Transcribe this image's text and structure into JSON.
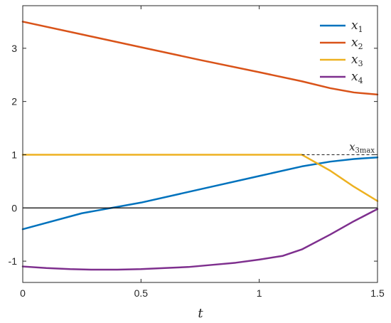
{
  "chart_data": {
    "type": "line",
    "xlabel": "t",
    "ylabel": "",
    "xlim": [
      0,
      1.5
    ],
    "ylim": [
      -1.4,
      3.8
    ],
    "xticks": [
      0,
      0.5,
      1,
      1.5
    ],
    "xtick_labels": [
      "0",
      "0.5",
      "1",
      "1.5"
    ],
    "yticks": [
      -1,
      0,
      1,
      2,
      3
    ],
    "ytick_labels": [
      "-1",
      "0",
      "1",
      "2",
      "3"
    ],
    "grid": false,
    "legend": "top-right",
    "series": [
      {
        "name": "x1",
        "name_main": "x",
        "name_sub": "1",
        "color": "#0072BD",
        "x": [
          0,
          0.25,
          0.5,
          0.75,
          1.0,
          1.18,
          1.3,
          1.4,
          1.5
        ],
        "y": [
          -0.4,
          -0.1,
          0.1,
          0.35,
          0.6,
          0.78,
          0.87,
          0.92,
          0.95
        ]
      },
      {
        "name": "x2",
        "name_main": "x",
        "name_sub": "2",
        "color": "#D95319",
        "x": [
          0,
          0.25,
          0.5,
          0.75,
          1.0,
          1.18,
          1.3,
          1.4,
          1.5
        ],
        "y": [
          3.5,
          3.26,
          3.02,
          2.78,
          2.55,
          2.38,
          2.25,
          2.17,
          2.13
        ]
      },
      {
        "name": "x3",
        "name_main": "x",
        "name_sub": "3",
        "color": "#EDB120",
        "x": [
          0,
          0.5,
          1.0,
          1.18,
          1.3,
          1.4,
          1.5
        ],
        "y": [
          1,
          1,
          1,
          1,
          0.7,
          0.4,
          0.13
        ]
      },
      {
        "name": "x4",
        "name_main": "x",
        "name_sub": "4",
        "color": "#7E2F8E",
        "x": [
          0,
          0.1,
          0.2,
          0.3,
          0.4,
          0.5,
          0.6,
          0.7,
          0.8,
          0.9,
          1.0,
          1.1,
          1.18,
          1.3,
          1.4,
          1.5
        ],
        "y": [
          -1.1,
          -1.13,
          -1.15,
          -1.16,
          -1.16,
          -1.15,
          -1.13,
          -1.11,
          -1.07,
          -1.03,
          -0.97,
          -0.9,
          -0.78,
          -0.5,
          -0.25,
          -0.02
        ]
      }
    ],
    "reference_lines": [
      {
        "type": "horizontal",
        "y": 0,
        "style": "solid",
        "color": "#000000"
      },
      {
        "type": "horizontal",
        "y": 1,
        "x_from": 1.18,
        "x_to": 1.5,
        "style": "dashed",
        "color": "#000000"
      }
    ],
    "annotations": [
      {
        "text_main": "x",
        "text_sub": "3max",
        "x": 1.38,
        "y": 1.08
      }
    ]
  }
}
